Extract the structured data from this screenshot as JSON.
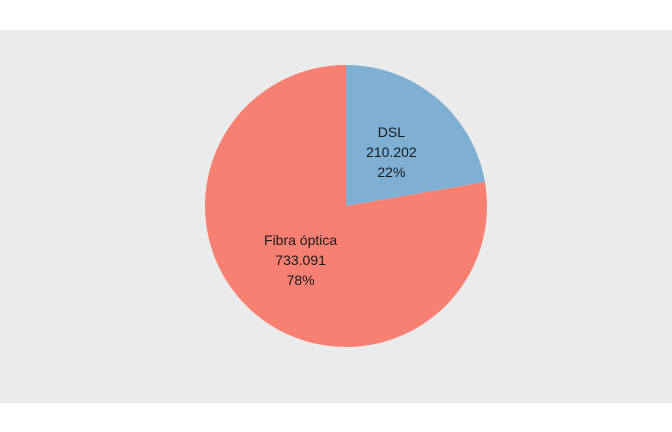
{
  "colors": {
    "page_background": "#ffffff",
    "panel_background": "#ebebeb",
    "slice_fill": [
      "#7fb0d4",
      "#f88073"
    ]
  },
  "chart_data": {
    "type": "pie",
    "title": "",
    "legend": "none",
    "start_angle_deg": 0,
    "direction": "clockwise",
    "slices": [
      {
        "label": "DSL",
        "value_text": "210.202",
        "value": 210202,
        "percent_text": "22%",
        "percent": 22,
        "color": "#7fb0d4"
      },
      {
        "label": "Fibra óptica",
        "value_text": "733.091",
        "value": 733091,
        "percent_text": "78%",
        "percent": 78,
        "color": "#f88073"
      }
    ]
  }
}
